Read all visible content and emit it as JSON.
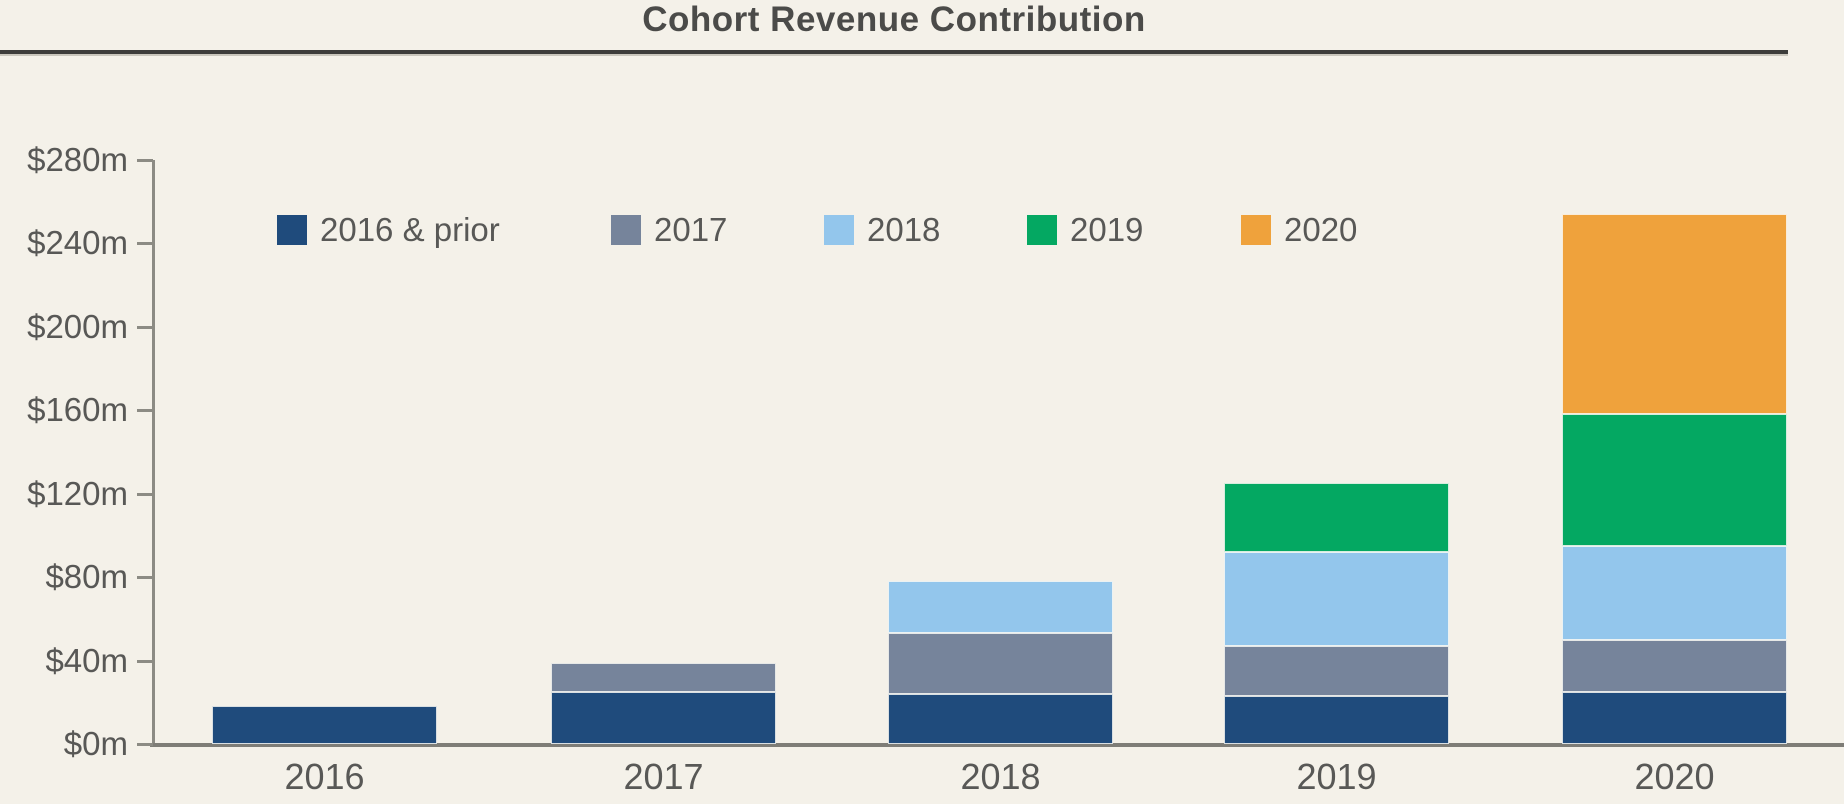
{
  "chart_data": {
    "type": "bar",
    "stacked": true,
    "title": "Cohort Revenue Contribution",
    "categories": [
      "2016",
      "2017",
      "2018",
      "2019",
      "2020"
    ],
    "series": [
      {
        "name": "2016 & prior",
        "color": "#1F4B7C",
        "values": [
          18,
          25,
          24,
          23,
          25
        ]
      },
      {
        "name": "2017",
        "color": "#76849B",
        "values": [
          0,
          14,
          29,
          24,
          25
        ]
      },
      {
        "name": "2018",
        "color": "#93C6EC",
        "values": [
          0,
          0,
          25,
          45,
          45
        ]
      },
      {
        "name": "2019",
        "color": "#04A862",
        "values": [
          0,
          0,
          0,
          33,
          63
        ]
      },
      {
        "name": "2020",
        "color": "#EFA23C",
        "values": [
          0,
          0,
          0,
          0,
          96
        ]
      }
    ],
    "totals": [
      18,
      39,
      78,
      125,
      254
    ],
    "unit": "$m",
    "ylim": [
      0,
      280
    ],
    "y_tick_step": 40,
    "y_tick_labels": [
      "$0m",
      "$40m",
      "$80m",
      "$120m",
      "$160m",
      "$200m",
      "$240m",
      "$280m"
    ],
    "xlabel": "",
    "ylabel": "",
    "grid": "off",
    "legend_position": "top-left-inside"
  },
  "colors": {
    "background": "#f4f1e9",
    "title_text": "#4b4b49",
    "title_rule": "#3d3d3b",
    "axis_line": "#8c8b84",
    "label_text": "#585856",
    "segment_separator": "#faf9f4"
  }
}
